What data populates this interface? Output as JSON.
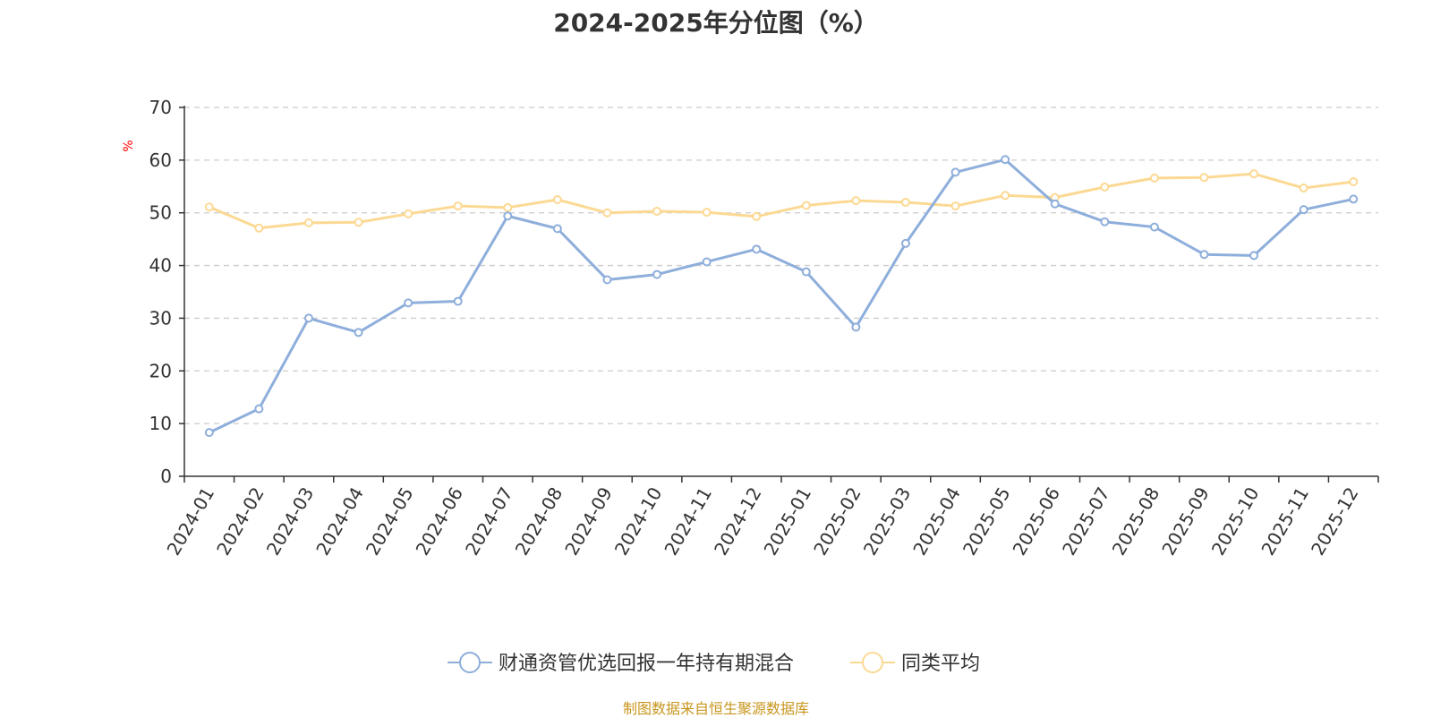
{
  "chart_data": {
    "type": "line",
    "title": "2024-2025年分位图（%）",
    "ylabel": "%",
    "xlabel": "",
    "ylim": [
      0,
      70
    ],
    "yticks": [
      0,
      10,
      20,
      30,
      40,
      50,
      60,
      70
    ],
    "grid": true,
    "legend_position": "bottom",
    "categories": [
      "2024-01",
      "2024-02",
      "2024-03",
      "2024-04",
      "2024-05",
      "2024-06",
      "2024-07",
      "2024-08",
      "2024-09",
      "2024-10",
      "2024-11",
      "2024-12",
      "2025-01",
      "2025-02",
      "2025-03",
      "2025-04",
      "2025-05",
      "2025-06",
      "2025-07",
      "2025-08",
      "2025-09",
      "2025-10",
      "2025-11",
      "2025-12"
    ],
    "series": [
      {
        "name": "财通资管优选回报一年持有期混合",
        "color": "#8eaedb",
        "values": [
          8.3,
          12.8,
          30.0,
          27.3,
          32.9,
          33.2,
          49.4,
          47.0,
          37.3,
          38.3,
          40.7,
          43.1,
          38.8,
          28.3,
          44.2,
          57.7,
          60.1,
          51.7,
          48.3,
          47.3,
          42.1,
          41.9,
          50.6,
          52.6
        ]
      },
      {
        "name": "同类平均",
        "color": "#fcd993",
        "values": [
          51.1,
          47.1,
          48.1,
          48.2,
          49.8,
          51.3,
          51.0,
          52.5,
          50.0,
          50.3,
          50.1,
          49.3,
          51.4,
          52.3,
          52.0,
          51.3,
          53.3,
          52.9,
          54.9,
          56.6,
          56.7,
          57.4,
          54.7,
          55.9
        ]
      }
    ]
  },
  "source_note": "制图数据来自恒生聚源数据库",
  "colors": {
    "axis": "#333333",
    "grid": "#cccccc",
    "unit": "#ff0000",
    "source_note": "#c8961e"
  }
}
